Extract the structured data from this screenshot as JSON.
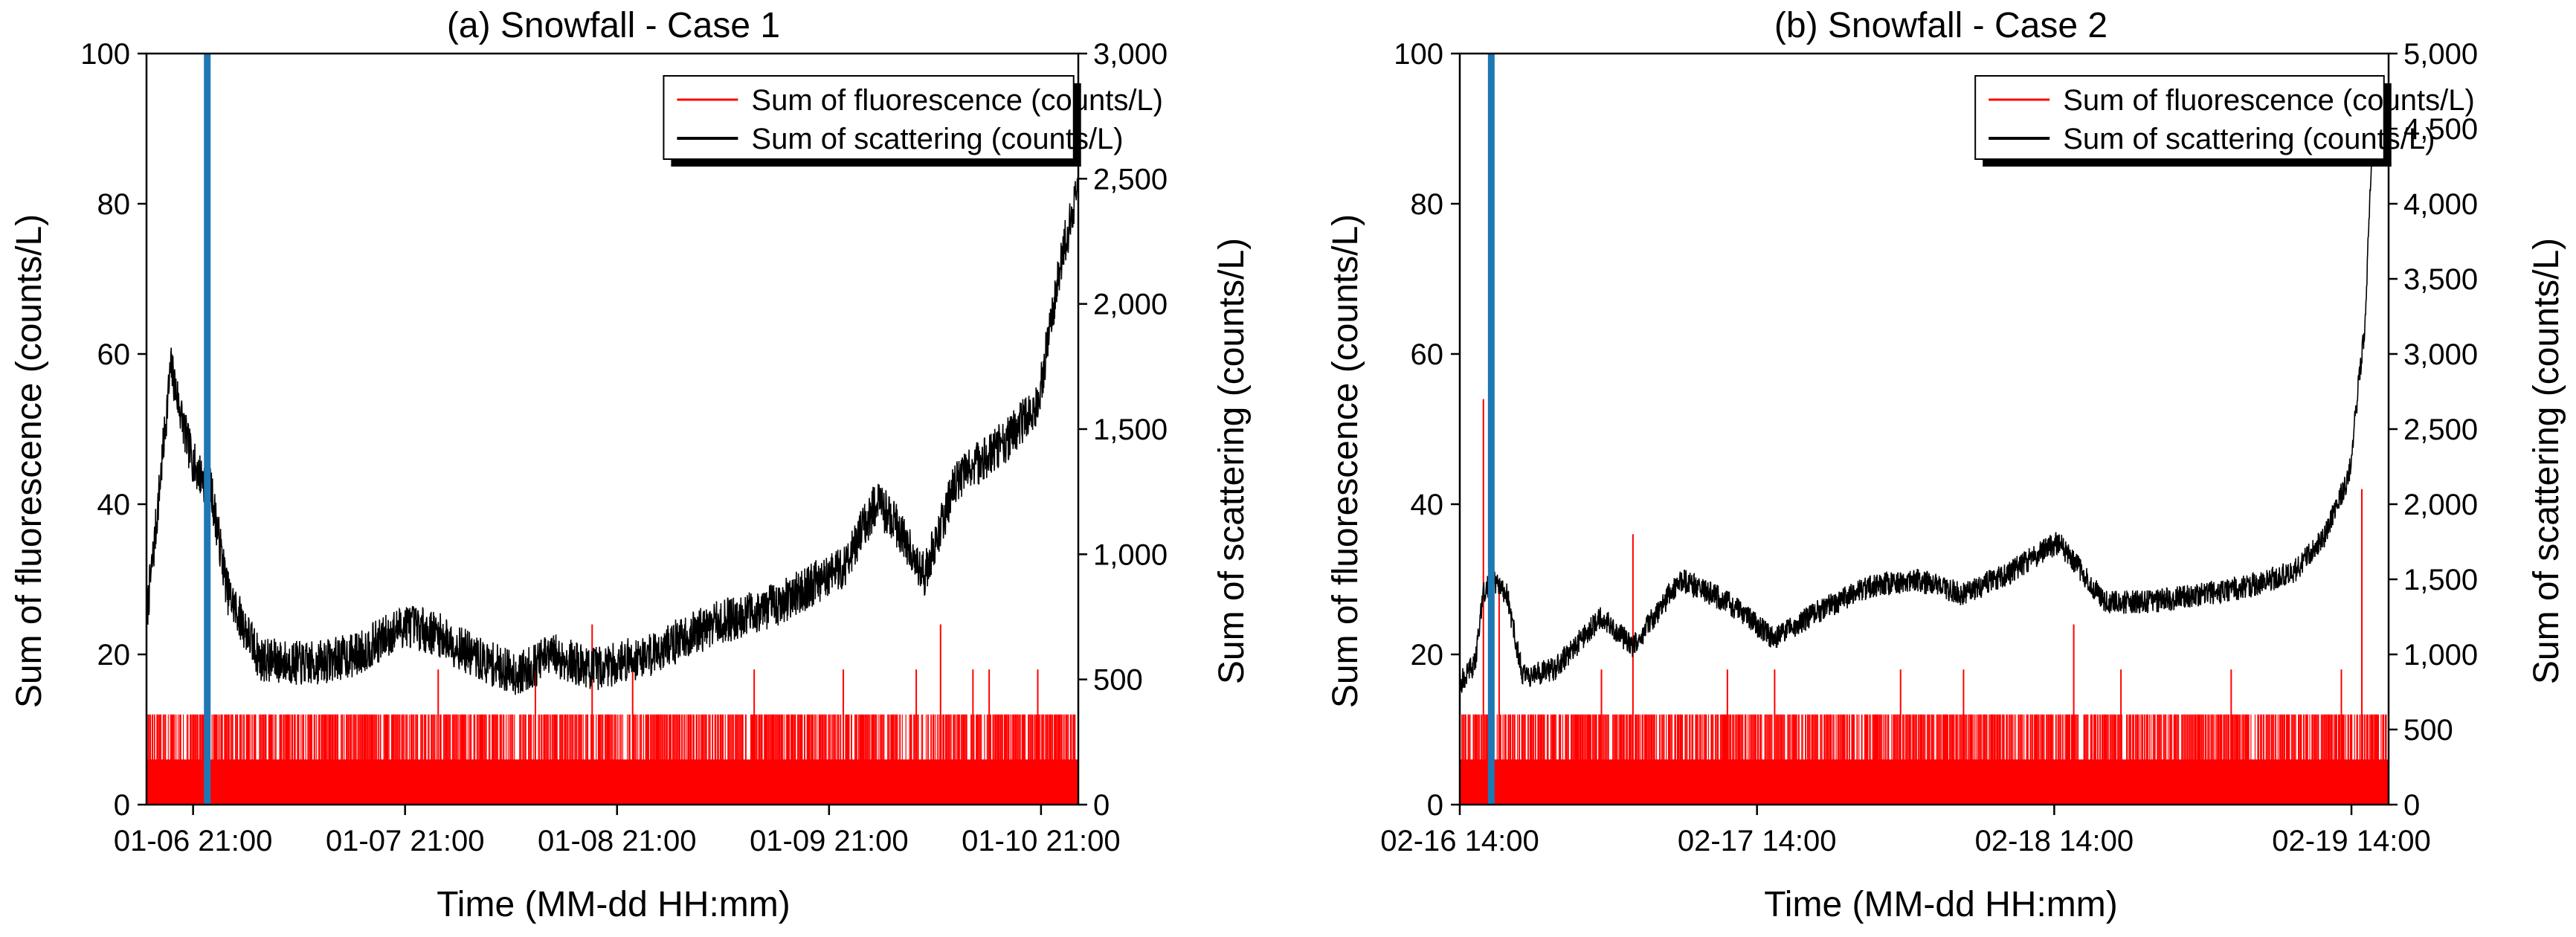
{
  "chart_data": [
    {
      "type": "line",
      "title": "(a) Snowfall - Case 1",
      "xlabel": "Time (MM-dd HH:mm)",
      "ylabel_left": "Sum of fluorescence (counts/L)",
      "ylabel_right": "Sum of scattering (counts/L)",
      "x_ticks": [
        "01-06 21:00",
        "01-07 21:00",
        "01-08 21:00",
        "01-09 21:00",
        "01-10 21:00"
      ],
      "x_range_hours": [
        0,
        115
      ],
      "y_left_range": [
        0,
        100
      ],
      "y_left_ticks": [
        "0",
        "20",
        "40",
        "60",
        "80",
        "100"
      ],
      "y_right_range": [
        0,
        3000
      ],
      "y_right_ticks": [
        "0",
        "500",
        "1,000",
        "1,500",
        "2,000",
        "2,500",
        "3,000"
      ],
      "marker_line_hours": 7.5,
      "legend": [
        "Sum of fluorescence (counts/L)",
        "Sum of scattering (counts/L)"
      ],
      "series": [
        {
          "name": "Sum of fluorescence (counts/L)",
          "color": "#ff0000",
          "base_level": 6,
          "typical_peak": 12,
          "spikes": [
            [
              36,
              18
            ],
            [
              48,
              18
            ],
            [
              55,
              24
            ],
            [
              60,
              18
            ],
            [
              75,
              18
            ],
            [
              86,
              18
            ],
            [
              95,
              18
            ],
            [
              98,
              24
            ],
            [
              102,
              18
            ],
            [
              104,
              18
            ],
            [
              110,
              18
            ]
          ]
        },
        {
          "name": "Sum of scattering (counts/L)",
          "color": "#000000",
          "x_hours": [
            0,
            1,
            3,
            5,
            6,
            8,
            10,
            14,
            20,
            26,
            32,
            36,
            41,
            46,
            50,
            55,
            62,
            70,
            78,
            86,
            90,
            92,
            96,
            100,
            106,
            110,
            113,
            115
          ],
          "y": [
            750,
            1050,
            1750,
            1450,
            1350,
            1250,
            850,
            580,
            560,
            600,
            720,
            680,
            580,
            520,
            600,
            540,
            600,
            720,
            800,
            950,
            1200,
            1150,
            920,
            1300,
            1450,
            1600,
            2200,
            2450
          ],
          "noise_amplitude": 90
        }
      ]
    },
    {
      "type": "line",
      "title": "(b) Snowfall - Case 2",
      "xlabel": "Time (MM-dd HH:mm)",
      "ylabel_left": "Sum of fluorescence (counts/L)",
      "ylabel_right": "Sum of scattering (counts/L)",
      "x_ticks": [
        "02-16 14:00",
        "02-17 14:00",
        "02-18 14:00",
        "02-19 14:00"
      ],
      "x_range_hours": [
        0,
        59
      ],
      "y_left_range": [
        0,
        100
      ],
      "y_left_ticks": [
        "0",
        "20",
        "40",
        "60",
        "80",
        "100"
      ],
      "y_right_range": [
        0,
        5000
      ],
      "y_right_ticks": [
        "0",
        "500",
        "1,000",
        "1,500",
        "2,000",
        "2,500",
        "3,000",
        "3,500",
        "4,000",
        "4,500",
        "5,000"
      ],
      "marker_line_hours": 2.0,
      "legend": [
        "Sum of fluorescence (counts/L)",
        "Sum of scattering (counts/L)"
      ],
      "series": [
        {
          "name": "Sum of fluorescence (counts/L)",
          "color": "#ff0000",
          "base_level": 6,
          "typical_peak": 12,
          "spikes": [
            [
              1.5,
              54
            ],
            [
              2.5,
              30
            ],
            [
              9,
              18
            ],
            [
              11,
              36
            ],
            [
              17,
              18
            ],
            [
              20,
              18
            ],
            [
              28,
              18
            ],
            [
              32,
              18
            ],
            [
              39,
              24
            ],
            [
              42,
              18
            ],
            [
              49,
              18
            ],
            [
              56,
              18
            ],
            [
              57.3,
              42
            ]
          ]
        },
        {
          "name": "Sum of scattering (counts/L)",
          "color": "#000000",
          "x_hours": [
            0,
            1,
            1.5,
            2.0,
            3,
            4,
            6,
            9,
            11,
            14,
            17,
            20,
            23,
            26,
            29,
            32,
            35,
            38,
            41,
            44,
            47,
            50,
            53,
            55,
            56.5,
            57.5,
            58
          ],
          "y": [
            800,
            950,
            1400,
            1500,
            1400,
            850,
            900,
            1250,
            1050,
            1500,
            1350,
            1100,
            1300,
            1450,
            1500,
            1400,
            1550,
            1750,
            1350,
            1350,
            1400,
            1450,
            1550,
            1800,
            2200,
            3200,
            4500
          ],
          "noise_amplitude": 80
        }
      ]
    }
  ]
}
